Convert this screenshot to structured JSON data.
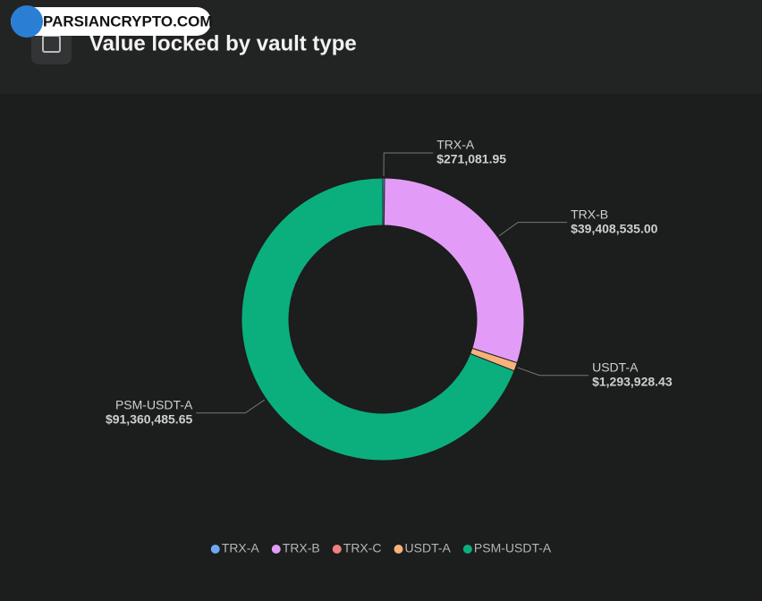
{
  "watermark": "PARSIANCRYPTO.COM",
  "header": {
    "title": "Value locked by vault type"
  },
  "chart_data": {
    "type": "pie",
    "donut": true,
    "categories": [
      "TRX-A",
      "TRX-B",
      "TRX-C",
      "USDT-A",
      "PSM-USDT-A"
    ],
    "values": [
      271081.95,
      39408535.0,
      0,
      1293928.43,
      91360485.65
    ],
    "value_labels": [
      "$271,081.95",
      "$39,408,535.00",
      null,
      "$1,293,928.43",
      "$91,360,485.65"
    ],
    "colors": [
      "#6fa8f0",
      "#e29cf7",
      "#f08080",
      "#f7b27a",
      "#0baf7e"
    ],
    "legend": "bottom"
  }
}
